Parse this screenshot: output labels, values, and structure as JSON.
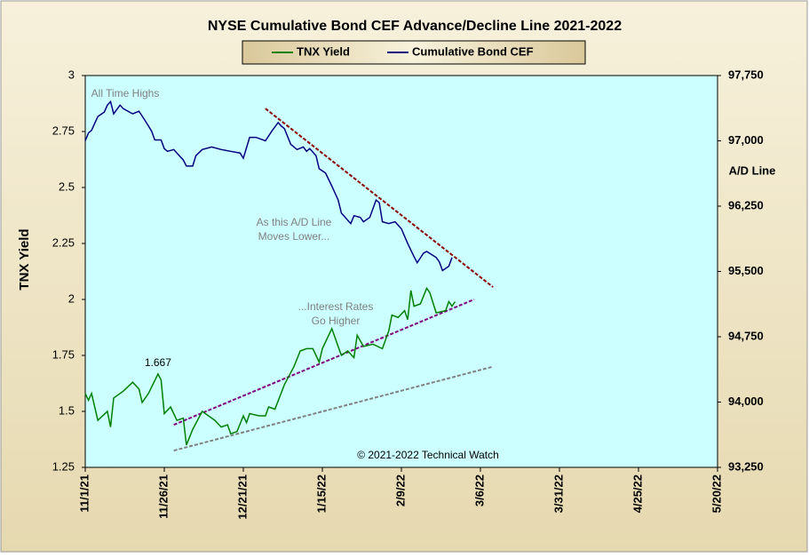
{
  "chart_data": {
    "type": "line",
    "title": "NYSE Cumulative  Bond CEF Advance/Decline  Line  2021-2022",
    "y_label": "TNX Yield",
    "y2_label": "A/D Line",
    "credit": "© 2021-2022  Technical  Watch",
    "xlim": [
      "11/1/21",
      "5/20/22"
    ],
    "xticks": [
      "11/1/21",
      "11/26/21",
      "12/21/21",
      "1/15/22",
      "2/9/22",
      "3/6/22",
      "3/31/22",
      "4/25/22",
      "5/20/22"
    ],
    "ylim": [
      1.25,
      3
    ],
    "yticks": [
      1.25,
      1.5,
      1.75,
      2,
      2.25,
      2.5,
      2.75,
      3
    ],
    "y2lim": [
      93250,
      97750
    ],
    "y2ticks": [
      {
        "value": 93250,
        "label": "93,250"
      },
      {
        "value": 94000,
        "label": "94,000"
      },
      {
        "value": 94750,
        "label": "94,750"
      },
      {
        "value": 95500,
        "label": "95,500"
      },
      {
        "value": 96250,
        "label": "96,250"
      },
      {
        "value": 97000,
        "label": "97,000"
      },
      {
        "value": 97750,
        "label": "97,750"
      }
    ],
    "grid": false,
    "legend": "top",
    "series": [
      {
        "name": "TNX Yield",
        "color": "#008000",
        "axis": "y",
        "x": [
          "11/1/21",
          "11/2/21",
          "11/3/21",
          "11/5/21",
          "11/8/21",
          "11/9/21",
          "11/10/21",
          "11/13/21",
          "11/16/21",
          "11/18/21",
          "11/19/21",
          "11/21/21",
          "11/24/21",
          "11/25/21",
          "11/26/21",
          "11/28/21",
          "11/30/21",
          "12/2/21",
          "12/3/21",
          "12/5/21",
          "12/8/21",
          "12/10/21",
          "12/12/21",
          "12/14/21",
          "12/16/21",
          "12/17/21",
          "12/19/21",
          "12/21/21",
          "12/22/21",
          "12/23/21",
          "12/26/21",
          "12/28/21",
          "12/29/21",
          "12/31/21",
          "1/3/22",
          "1/6/22",
          "1/8/22",
          "1/10/22",
          "1/12/22",
          "1/14/22",
          "1/15/22",
          "1/18/22",
          "1/19/22",
          "1/21/22",
          "1/23/22",
          "1/25/22",
          "1/26/22",
          "1/28/22",
          "1/31/22",
          "2/3/22",
          "2/5/22",
          "2/6/22",
          "2/8/22",
          "2/10/22",
          "2/11/22",
          "2/12/22",
          "2/13/22",
          "2/15/22",
          "2/17/22",
          "2/18/22",
          "2/20/22",
          "2/23/22",
          "2/24/22",
          "2/25/22",
          "2/26/22"
        ],
        "values": [
          1.58,
          1.55,
          1.58,
          1.46,
          1.5,
          1.43,
          1.56,
          1.59,
          1.63,
          1.6,
          1.54,
          1.58,
          1.667,
          1.64,
          1.49,
          1.52,
          1.46,
          1.47,
          1.35,
          1.42,
          1.5,
          1.48,
          1.46,
          1.43,
          1.44,
          1.4,
          1.41,
          1.48,
          1.45,
          1.49,
          1.48,
          1.48,
          1.52,
          1.51,
          1.62,
          1.7,
          1.77,
          1.78,
          1.78,
          1.72,
          1.78,
          1.87,
          1.83,
          1.75,
          1.77,
          1.74,
          1.84,
          1.79,
          1.8,
          1.78,
          1.86,
          1.93,
          1.92,
          1.95,
          1.91,
          2.04,
          1.97,
          1.98,
          2.05,
          2.03,
          1.94,
          1.95,
          1.99,
          1.97,
          1.99
        ]
      },
      {
        "name": "Cumulative Bond CEF",
        "color": "#000080",
        "axis": "y2",
        "x": [
          "11/1/21",
          "11/2/21",
          "11/3/21",
          "11/5/21",
          "11/7/21",
          "11/8/21",
          "11/9/21",
          "11/10/21",
          "11/12/21",
          "11/13/21",
          "11/16/21",
          "11/18/21",
          "11/20/21",
          "11/22/21",
          "11/23/21",
          "11/25/21",
          "11/26/21",
          "11/27/21",
          "11/29/21",
          "11/30/21",
          "12/2/21",
          "12/3/21",
          "12/5/21",
          "12/6/21",
          "12/8/21",
          "12/11/21",
          "12/14/21",
          "12/17/21",
          "12/20/21",
          "12/21/21",
          "12/23/21",
          "12/25/21",
          "12/28/21",
          "12/30/21",
          "1/1/22",
          "1/2/22",
          "1/3/22",
          "1/5/22",
          "1/7/22",
          "1/9/22",
          "1/10/22",
          "1/11/22",
          "1/13/22",
          "1/14/22",
          "1/16/22",
          "1/18/22",
          "1/20/22",
          "1/21/22",
          "1/23/22",
          "1/24/22",
          "1/25/22",
          "1/27/22",
          "1/28/22",
          "1/30/22",
          "2/1/22",
          "2/2/22",
          "2/3/22",
          "2/5/22",
          "2/7/22",
          "2/9/22",
          "2/11/22",
          "2/13/22",
          "2/14/22",
          "2/16/22",
          "2/17/22",
          "2/20/22",
          "2/21/22",
          "2/22/22",
          "2/24/22",
          "2/25/22"
        ],
        "values": [
          97000,
          97090,
          97120,
          97280,
          97330,
          97410,
          97450,
          97310,
          97410,
          97370,
          97310,
          97340,
          97230,
          97110,
          97010,
          97010,
          96910,
          96880,
          96900,
          96860,
          96780,
          96710,
          96710,
          96830,
          96900,
          96930,
          96900,
          96880,
          96860,
          96800,
          97040,
          97040,
          97000,
          97110,
          97210,
          97170,
          97140,
          96960,
          96900,
          96930,
          96880,
          96910,
          96830,
          96680,
          96630,
          96480,
          96320,
          96170,
          96090,
          96050,
          96140,
          96120,
          96070,
          96120,
          96320,
          96290,
          96070,
          96050,
          96070,
          95990,
          95820,
          95670,
          95600,
          95710,
          95730,
          95660,
          95610,
          95510,
          95560,
          95660
        ]
      }
    ],
    "trendlines": [
      {
        "color": "#8b0000",
        "axis": "y2",
        "x": [
          "12/28/21",
          "3/10/22"
        ],
        "values": [
          97370,
          95320
        ]
      },
      {
        "color": "#800080",
        "axis": "y",
        "x": [
          "11/29/21",
          "3/4/22"
        ],
        "values": [
          1.44,
          2.0
        ]
      },
      {
        "color": "#808080",
        "axis": "y",
        "x": [
          "11/29/21",
          "3/10/22"
        ],
        "values": [
          1.325,
          1.7
        ]
      }
    ],
    "annotations": [
      {
        "text": [
          "All Time Highs"
        ]
      },
      {
        "text": [
          "As this A/D Line",
          "Moves Lower..."
        ]
      },
      {
        "text": [
          "...Interest Rates",
          "Go Higher"
        ]
      }
    ],
    "point_label": {
      "x": "11/24/21",
      "y": 1.667
    }
  }
}
